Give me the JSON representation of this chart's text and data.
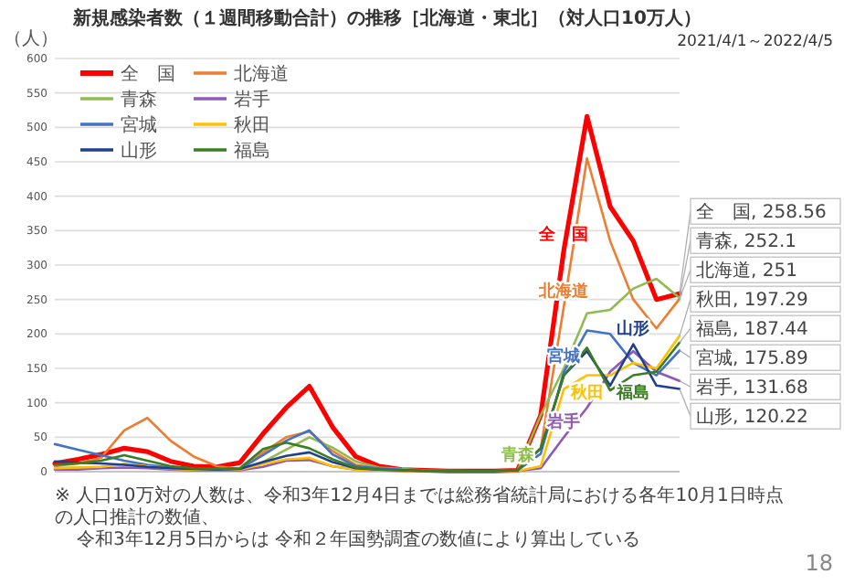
{
  "chart_data": {
    "type": "line",
    "title": "新規感染者数（１週間移動合計）の推移［北海道・東北］（対人口10万人）",
    "subtitle": "2021/4/1～2022/4/5",
    "ylabel": "（人）",
    "categories": [
      null,
      null,
      null,
      null,
      null,
      null,
      null,
      null,
      null,
      null,
      null,
      null,
      null,
      null,
      null,
      null,
      null,
      null,
      null,
      null,
      null,
      null,
      null,
      null,
      null,
      null,
      null,
      null
    ],
    "ylim": [
      0,
      600
    ],
    "yticks": [
      0,
      50,
      100,
      150,
      200,
      250,
      300,
      350,
      400,
      450,
      500,
      550,
      600
    ],
    "grid": "y",
    "legend": "top left",
    "marker": "none",
    "line_style": "solid",
    "series": [
      {
        "name": "全　国",
        "color": "#ff0000",
        "values": [
          12,
          18,
          25,
          34,
          29,
          15,
          8,
          7,
          13,
          55,
          93,
          124,
          65,
          22,
          8,
          3,
          2,
          1,
          1,
          1,
          2,
          82,
          322,
          516,
          385,
          335,
          250,
          258.56
        ],
        "value_labels": [
          null,
          null,
          null,
          null,
          null,
          null,
          null,
          null,
          null,
          null,
          null,
          null,
          null,
          null,
          null,
          null,
          null,
          null,
          null,
          null,
          null,
          null,
          null,
          null,
          null,
          null,
          null,
          "全　国, 258.56"
        ]
      },
      {
        "name": "北海道",
        "color": "#ed7d31",
        "values": [
          8,
          12,
          20,
          60,
          78,
          45,
          22,
          8,
          4,
          28,
          50,
          58,
          30,
          10,
          5,
          2,
          1,
          1,
          1,
          1,
          2,
          34,
          240,
          455,
          335,
          250,
          208,
          251
        ],
        "value_labels": [
          null,
          null,
          null,
          null,
          null,
          null,
          null,
          null,
          null,
          null,
          null,
          null,
          null,
          null,
          null,
          null,
          null,
          null,
          null,
          null,
          null,
          null,
          null,
          null,
          null,
          null,
          null,
          "北海道, 251"
        ]
      },
      {
        "name": "青森",
        "color": "#8fbc50",
        "values": [
          5,
          6,
          7,
          11,
          9,
          5,
          3,
          3,
          3,
          14,
          32,
          50,
          35,
          15,
          6,
          4,
          2,
          1,
          1,
          1,
          2,
          82,
          150,
          230,
          235,
          266,
          280,
          252.1
        ],
        "value_labels": [
          null,
          null,
          null,
          null,
          null,
          null,
          null,
          null,
          null,
          null,
          null,
          null,
          null,
          null,
          null,
          null,
          null,
          null,
          null,
          null,
          null,
          null,
          null,
          null,
          null,
          null,
          null,
          "青森, 252.1"
        ]
      },
      {
        "name": "岩手",
        "color": "#8e5ab5",
        "values": [
          3,
          3,
          5,
          6,
          5,
          3,
          2,
          2,
          2,
          7,
          16,
          17,
          8,
          3,
          2,
          1,
          1,
          1,
          1,
          1,
          1,
          5,
          50,
          93,
          145,
          175,
          145,
          131.68
        ],
        "value_labels": [
          null,
          null,
          null,
          null,
          null,
          null,
          null,
          null,
          null,
          null,
          null,
          null,
          null,
          null,
          null,
          null,
          null,
          null,
          null,
          null,
          null,
          null,
          null,
          null,
          null,
          null,
          null,
          "岩手, 131.68"
        ]
      },
      {
        "name": "宮城",
        "color": "#4472c4",
        "values": [
          40,
          32,
          24,
          16,
          10,
          6,
          4,
          4,
          4,
          24,
          45,
          60,
          25,
          8,
          5,
          3,
          2,
          2,
          1,
          1,
          2,
          26,
          145,
          205,
          200,
          158,
          140,
          175.89
        ],
        "value_labels": [
          null,
          null,
          null,
          null,
          null,
          null,
          null,
          null,
          null,
          null,
          null,
          null,
          null,
          null,
          null,
          null,
          null,
          null,
          null,
          null,
          null,
          null,
          null,
          null,
          null,
          null,
          null,
          "宮城, 175.89"
        ]
      },
      {
        "name": "秋田",
        "color": "#ffc000",
        "values": [
          5,
          6,
          7,
          11,
          8,
          4,
          3,
          3,
          3,
          11,
          18,
          20,
          8,
          3,
          2,
          1,
          1,
          1,
          1,
          1,
          1,
          8,
          120,
          140,
          140,
          158,
          150,
          197.29
        ],
        "value_labels": [
          null,
          null,
          null,
          null,
          null,
          null,
          null,
          null,
          null,
          null,
          null,
          null,
          null,
          null,
          null,
          null,
          null,
          null,
          null,
          null,
          null,
          null,
          null,
          null,
          null,
          null,
          null,
          "秋田, 197.29"
        ]
      },
      {
        "name": "山形",
        "color": "#203f8f",
        "values": [
          15,
          13,
          12,
          10,
          7,
          5,
          4,
          3,
          4,
          14,
          23,
          28,
          14,
          5,
          3,
          2,
          1,
          1,
          1,
          1,
          2,
          34,
          140,
          175,
          125,
          185,
          125,
          120.22
        ],
        "value_labels": [
          null,
          null,
          null,
          null,
          null,
          null,
          null,
          null,
          null,
          null,
          null,
          null,
          null,
          null,
          null,
          null,
          null,
          null,
          null,
          null,
          null,
          null,
          null,
          null,
          null,
          null,
          null,
          "山形, 120.22"
        ]
      },
      {
        "name": "福島",
        "color": "#3b7d23",
        "values": [
          10,
          12,
          16,
          24,
          16,
          8,
          5,
          4,
          5,
          33,
          42,
          34,
          18,
          6,
          3,
          2,
          1,
          1,
          1,
          1,
          2,
          34,
          140,
          180,
          118,
          140,
          145,
          187.44
        ],
        "value_labels": [
          null,
          null,
          null,
          null,
          null,
          null,
          null,
          null,
          null,
          null,
          null,
          null,
          null,
          null,
          null,
          null,
          null,
          null,
          null,
          null,
          null,
          null,
          null,
          null,
          null,
          null,
          null,
          "福島, 187.44"
        ]
      }
    ],
    "annotations": [
      "※ 人口10万対の人数は、令和3年12月4日までは総務省統計局における各年10月1日時点の人口推計の数値、",
      "令和3年12月5日からは 令和２年国勢調査の数値により算出している",
      "18"
    ]
  }
}
